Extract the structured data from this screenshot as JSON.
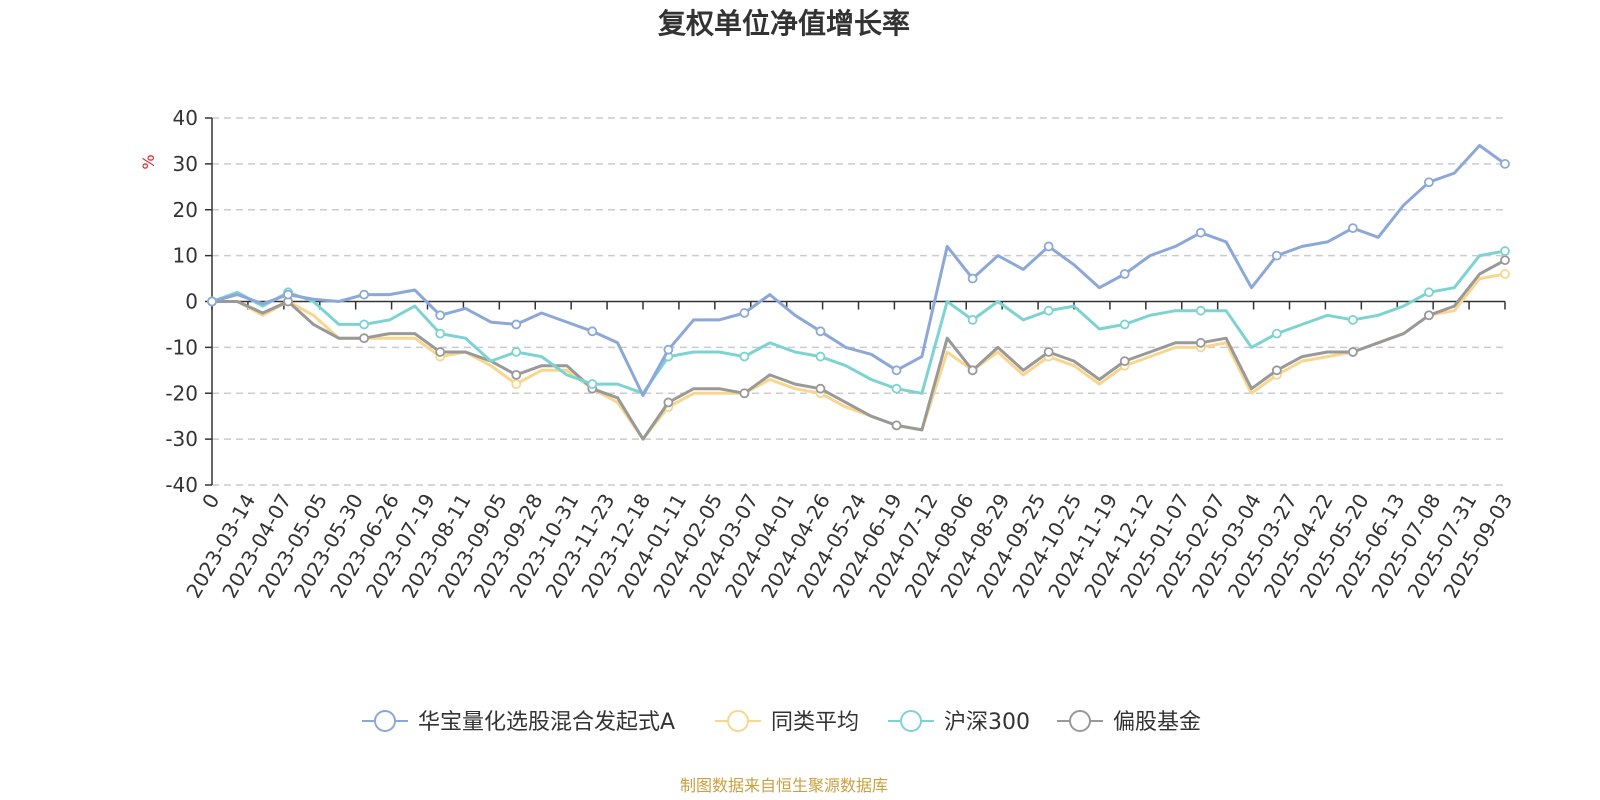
{
  "chart_data": {
    "type": "line",
    "title": "复权单位净值增长率",
    "ylabel": "%",
    "ylim": [
      -40,
      40
    ],
    "yticks": [
      "40",
      "30",
      "20",
      "10",
      "0",
      "-10",
      "-20",
      "-30",
      "-40"
    ],
    "x_tick_labels": [
      "0",
      "2023-03-14",
      "2023-04-07",
      "2023-05-05",
      "2023-05-30",
      "2023-06-26",
      "2023-07-19",
      "2023-08-11",
      "2023-09-05",
      "2023-09-28",
      "2023-10-31",
      "2023-11-23",
      "2023-12-18",
      "2024-01-11",
      "2024-02-05",
      "2024-03-07",
      "2024-04-01",
      "2024-04-26",
      "2024-05-24",
      "2024-06-19",
      "2024-07-12",
      "2024-08-06",
      "2024-08-29",
      "2024-09-25",
      "2024-10-25",
      "2024-11-19",
      "2024-12-12",
      "2025-01-07",
      "2025-02-07",
      "2025-03-04",
      "2025-03-27",
      "2025-04-22",
      "2025-05-20",
      "2025-06-13",
      "2025-07-08",
      "2025-07-31",
      "2025-09-03"
    ],
    "legend_position": "bottom",
    "grid": "horizontal-dashed",
    "series": [
      {
        "name": "华宝量化选股混合发起式A",
        "color": "#8ba8d9",
        "values": [
          0,
          1.5,
          -0.5,
          1.5,
          0.5,
          0,
          1.5,
          1.5,
          2.5,
          -3,
          -1.5,
          -4.5,
          -5,
          -2.5,
          -4.5,
          -6.5,
          -9,
          -20.5,
          -10.5,
          -4,
          -4,
          -2.5,
          1.5,
          -3,
          -6.5,
          -10,
          -11.5,
          -15,
          -12,
          12,
          5,
          10,
          7,
          12,
          8,
          3,
          6,
          10,
          12,
          15,
          13,
          3,
          10,
          12,
          13,
          16,
          14,
          21,
          26,
          28,
          34,
          30
        ]
      },
      {
        "name": "同类平均",
        "color": "#f9d68d",
        "values": [
          0,
          0,
          -3,
          0,
          -3,
          -8,
          -8,
          -8,
          -8,
          -12,
          -11,
          -14,
          -18,
          -15,
          -15,
          -19,
          -22,
          -30,
          -23,
          -20,
          -20,
          -20,
          -17,
          -19,
          -20,
          -23,
          -25,
          -27,
          -28,
          -11,
          -15,
          -11,
          -16,
          -12,
          -14,
          -18,
          -14,
          -12,
          -10,
          -10,
          -9,
          -20,
          -16,
          -13,
          -12,
          -11,
          -9,
          -7,
          -3,
          -2,
          5,
          6
        ]
      },
      {
        "name": "沪深300",
        "color": "#7dd3d2",
        "values": [
          0,
          2,
          -1,
          2,
          0,
          -5,
          -5,
          -4,
          -1,
          -7,
          -8,
          -13,
          -11,
          -12,
          -16,
          -18,
          -18,
          -20,
          -12,
          -11,
          -11,
          -12,
          -9,
          -11,
          -12,
          -14,
          -17,
          -19,
          -20,
          0,
          -4,
          0,
          -4,
          -2,
          -1,
          -6,
          -5,
          -3,
          -2,
          -2,
          -2,
          -10,
          -7,
          -5,
          -3,
          -4,
          -3,
          -1,
          2,
          3,
          10,
          11
        ]
      },
      {
        "name": "偏股基金",
        "color": "#999999",
        "values": [
          0,
          0,
          -2.5,
          0,
          -5,
          -8,
          -8,
          -7,
          -7,
          -11,
          -11,
          -13,
          -16,
          -14,
          -14,
          -19,
          -21,
          -30,
          -22,
          -19,
          -19,
          -20,
          -16,
          -18,
          -19,
          -22,
          -25,
          -27,
          -28,
          -8,
          -15,
          -10,
          -15,
          -11,
          -13,
          -17,
          -13,
          -11,
          -9,
          -9,
          -8,
          -19,
          -15,
          -12,
          -11,
          -11,
          -9,
          -7,
          -3,
          -1,
          6,
          9
        ]
      }
    ]
  },
  "footer": {
    "source": "制图数据来自恒生聚源数据库"
  }
}
